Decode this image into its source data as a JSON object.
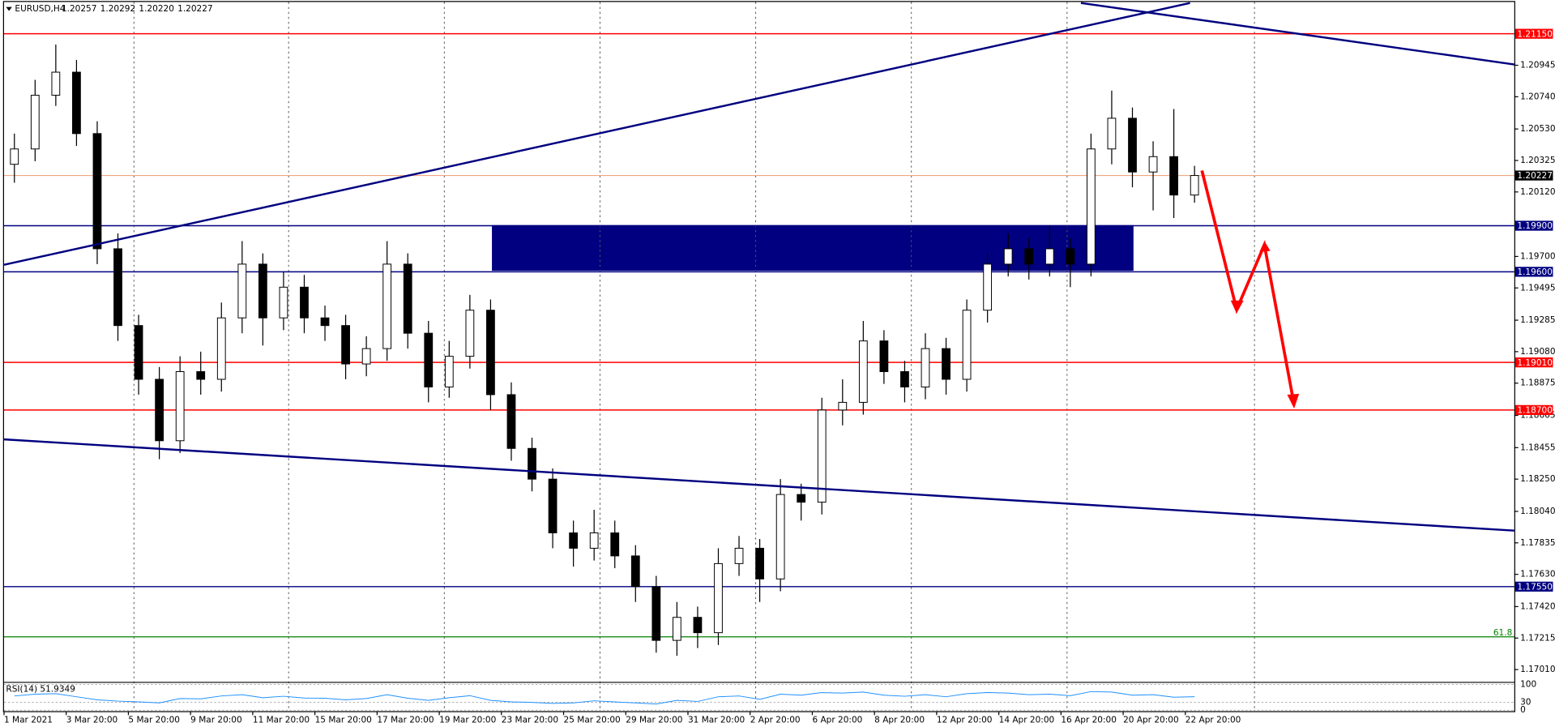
{
  "header": {
    "symbol": "EURUSD,H4",
    "ohlc": [
      "1.20257",
      "1.20292",
      "1.20220",
      "1.20227"
    ]
  },
  "chart_data": {
    "type": "candlestick",
    "x_labels": [
      "1 Mar 2021",
      "3 Mar 20:00",
      "5 Mar 20:00",
      "9 Mar 20:00",
      "11 Mar 20:00",
      "15 Mar 20:00",
      "17 Mar 20:00",
      "19 Mar 20:00",
      "23 Mar 20:00",
      "25 Mar 20:00",
      "29 Mar 20:00",
      "31 Mar 20:00",
      "2 Apr 20:00",
      "6 Apr 20:00",
      "8 Apr 20:00",
      "12 Apr 20:00",
      "14 Apr 20:00",
      "16 Apr 20:00",
      "20 Apr 20:00",
      "22 Apr 20:00"
    ],
    "open": [
      1.203,
      1.204,
      1.2075,
      1.209,
      1.205,
      1.1975,
      1.1925,
      1.189,
      1.185,
      1.1895,
      1.189,
      1.193,
      1.1965,
      1.193,
      1.195,
      1.193,
      1.1925,
      1.19,
      1.191,
      1.1965,
      1.192,
      1.1885,
      1.1905,
      1.1935,
      1.188,
      1.1845,
      1.1825,
      1.179,
      1.178,
      1.179,
      1.1775,
      1.1755,
      1.172,
      1.1735,
      1.1725,
      1.177,
      1.178,
      1.176,
      1.1815,
      1.181,
      1.187,
      1.1875,
      1.1915,
      1.1895,
      1.1885,
      1.191,
      1.189,
      1.1935,
      1.1965,
      1.1975,
      1.1965,
      1.1975,
      1.1965,
      1.204,
      1.206,
      1.2025,
      1.2035,
      1.201
    ],
    "high": [
      1.205,
      1.2085,
      1.2108,
      1.2098,
      1.2058,
      1.1985,
      1.1932,
      1.1898,
      1.1905,
      1.1908,
      1.194,
      1.198,
      1.1972,
      1.196,
      1.1958,
      1.1938,
      1.1932,
      1.1918,
      1.198,
      1.1972,
      1.1928,
      1.1915,
      1.1945,
      1.1942,
      1.1888,
      1.1852,
      1.1832,
      1.1798,
      1.1805,
      1.1798,
      1.1782,
      1.1762,
      1.1745,
      1.1742,
      1.178,
      1.1788,
      1.1786,
      1.1825,
      1.1822,
      1.1878,
      1.189,
      1.1928,
      1.1922,
      1.1902,
      1.192,
      1.1917,
      1.1942,
      1.1972,
      1.1985,
      1.1982,
      1.199,
      1.1982,
      1.205,
      1.2078,
      1.2067,
      1.2045,
      1.2066,
      1.2029
    ],
    "low": [
      1.2018,
      1.2032,
      1.2068,
      1.2042,
      1.1965,
      1.1915,
      1.188,
      1.1838,
      1.1842,
      1.188,
      1.1882,
      1.192,
      1.1912,
      1.1922,
      1.192,
      1.1915,
      1.189,
      1.1892,
      1.1902,
      1.191,
      1.1875,
      1.1878,
      1.1897,
      1.187,
      1.1837,
      1.1817,
      1.178,
      1.1768,
      1.1772,
      1.1767,
      1.1745,
      1.1712,
      1.171,
      1.1715,
      1.1717,
      1.1762,
      1.1745,
      1.1752,
      1.1798,
      1.1802,
      1.186,
      1.1867,
      1.1887,
      1.1875,
      1.1877,
      1.188,
      1.1882,
      1.1927,
      1.1957,
      1.1955,
      1.1957,
      1.195,
      1.1957,
      1.203,
      1.2015,
      1.2,
      1.1995,
      1.2005
    ],
    "close": [
      1.204,
      1.2075,
      1.209,
      1.205,
      1.1975,
      1.1925,
      1.189,
      1.185,
      1.1895,
      1.189,
      1.193,
      1.1965,
      1.193,
      1.195,
      1.193,
      1.1925,
      1.19,
      1.191,
      1.1965,
      1.192,
      1.1885,
      1.1905,
      1.1935,
      1.188,
      1.1845,
      1.1825,
      1.179,
      1.178,
      1.179,
      1.1775,
      1.1755,
      1.172,
      1.1735,
      1.1725,
      1.177,
      1.178,
      1.176,
      1.1815,
      1.181,
      1.187,
      1.1875,
      1.1915,
      1.1895,
      1.1885,
      1.191,
      1.189,
      1.1935,
      1.1965,
      1.1975,
      1.1965,
      1.1975,
      1.1965,
      1.204,
      1.206,
      1.2025,
      1.2035,
      1.201,
      1.20227
    ],
    "up_color": "#ffffff",
    "down_color": "#000000",
    "ylim": [
      1.16933,
      1.21357
    ],
    "yticks": [
      1.20945,
      {
        "value": 1.2074,
        "label": "1.20740"
      },
      {
        "value": 1.2053,
        "label": "1.20530"
      },
      1.20325,
      {
        "value": 1.2012,
        "label": "1.20120"
      },
      {
        "value": 1.197,
        "label": "1.19700"
      },
      1.19495,
      1.19285,
      {
        "value": 1.1908,
        "label": "1.19080"
      },
      1.18875,
      1.18665,
      1.18455,
      {
        "value": 1.1825,
        "label": "1.18250"
      },
      {
        "value": 1.1804,
        "label": "1.18040"
      },
      1.17835,
      {
        "value": 1.1763,
        "label": "1.17630"
      },
      {
        "value": 1.1742,
        "label": "1.17420"
      },
      1.17215,
      {
        "value": 1.1701,
        "label": "1.17010"
      }
    ],
    "levels": [
      {
        "value": 1.2115,
        "label": "1.21150",
        "color": "#ff0000"
      },
      {
        "value": 1.199,
        "label": "1.19900",
        "color": "#000080"
      },
      {
        "value": 1.196,
        "label": "1.19600",
        "color": "#000080"
      },
      {
        "value": 1.1901,
        "label": "1.19010",
        "color": "#ff0000"
      },
      {
        "value": 1.187,
        "label": "1.18700",
        "color": "#ff0000"
      },
      {
        "value": 1.1755,
        "label": "1.17550",
        "color": "#000080"
      }
    ],
    "fib": {
      "value": 1.17223,
      "label": "61.8",
      "color": "#008000"
    },
    "current": {
      "value": 1.20227,
      "label": "1.20227",
      "color": "#f4a582"
    },
    "rsi": {
      "label": "RSI(14) 51.9349",
      "ylim": [
        0,
        100
      ],
      "yticks": [
        100,
        30,
        0
      ],
      "color": "#1e90ff",
      "values": [
        55,
        62,
        64,
        52,
        40,
        35,
        32,
        28,
        45,
        44,
        55,
        60,
        48,
        54,
        47,
        46,
        40,
        45,
        60,
        46,
        38,
        48,
        56,
        38,
        32,
        30,
        26,
        28,
        36,
        32,
        28,
        24,
        38,
        34,
        52,
        55,
        42,
        62,
        58,
        68,
        66,
        70,
        58,
        54,
        60,
        52,
        64,
        68,
        66,
        60,
        62,
        56,
        72,
        70,
        58,
        60,
        50,
        52
      ]
    }
  }
}
